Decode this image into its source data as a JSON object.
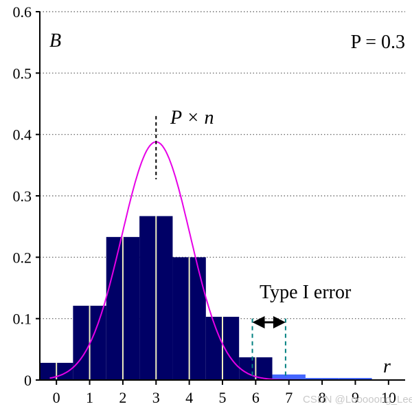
{
  "chart_data": {
    "type": "bar",
    "title": "",
    "xlabel": "r",
    "ylabel": "B",
    "parameter_label": "P = 0.3",
    "x_categories": [
      "0",
      "1",
      "2",
      "3",
      "4",
      "5",
      "6",
      "7",
      "8",
      "9",
      "10"
    ],
    "y_ticks": [
      "0",
      "0.1",
      "0.2",
      "0.3",
      "0.4",
      "0.5",
      "0.6"
    ],
    "ylim": [
      0,
      0.6
    ],
    "xlim": [
      -0.5,
      10.5
    ],
    "grid": "horizontal dotted",
    "bars": {
      "x": [
        0,
        1,
        2,
        3,
        4,
        5,
        6,
        7,
        8,
        9,
        10
      ],
      "values": [
        0.028,
        0.121,
        0.233,
        0.267,
        0.2,
        0.103,
        0.037,
        0.009,
        0.0014,
        0.0001,
        0.0
      ],
      "color": "#000066",
      "highlight_from_index": 7,
      "highlight_color": "#4466ff",
      "center_line_color": "#f0f0c0"
    },
    "normal_curve": {
      "mean": 3,
      "sd": 1.03,
      "peak": 0.388,
      "color": "#e600e6"
    },
    "annotations": {
      "mean_label": "P × n",
      "type_error_label": "Type I error",
      "dashed_line_color": "#00808080",
      "arrow_color": "#000000"
    },
    "watermark": "CSDN @Looooong_Lee"
  }
}
